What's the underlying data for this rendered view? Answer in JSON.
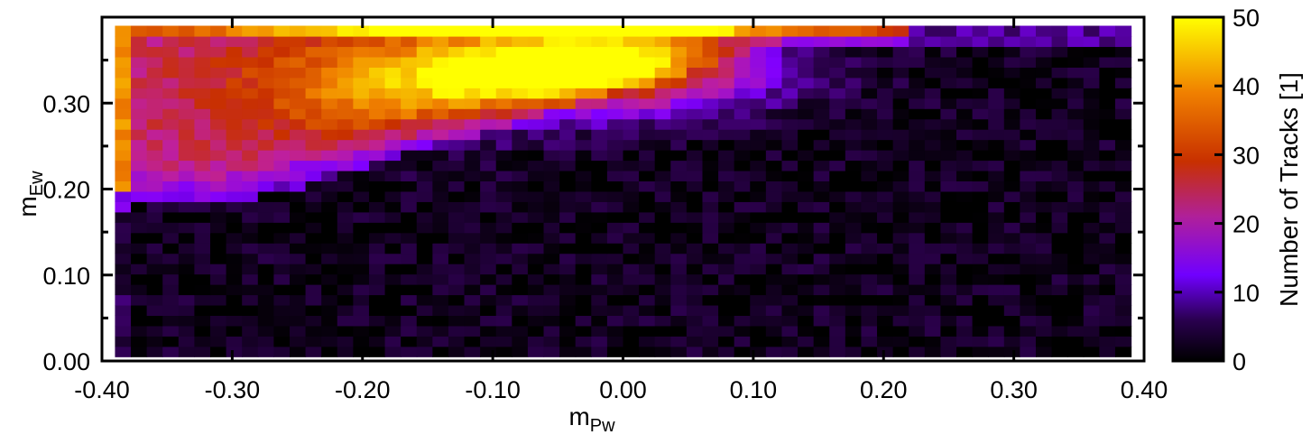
{
  "chart_data": {
    "type": "heatmap",
    "title": "",
    "xlabel": {
      "main": "m",
      "sub": "Pw"
    },
    "ylabel": {
      "main": "m",
      "sub": "Ew"
    },
    "xlim": [
      -0.4,
      0.4
    ],
    "ylim": [
      0.0,
      0.4
    ],
    "xticks": [
      "-0.40",
      "-0.30",
      "-0.20",
      "-0.10",
      "0.00",
      "0.10",
      "0.20",
      "0.30",
      "0.40"
    ],
    "yticks": [
      "0.00",
      "0.10",
      "0.20",
      "0.30"
    ],
    "colorbar": {
      "label": "Number of Tracks [1]",
      "range": [
        0,
        50
      ],
      "ticks": [
        "0",
        "10",
        "20",
        "30",
        "40",
        "50"
      ],
      "colormap": [
        "#000000",
        "#3a0066",
        "#8000ff",
        "#c0209a",
        "#c83000",
        "#f08000",
        "#ffff00"
      ]
    },
    "grid": {
      "x_bins": 64,
      "y_bins": 32,
      "x_range": [
        -0.39,
        0.39
      ],
      "y_range": [
        0.005,
        0.39
      ]
    },
    "description_features": [
      {
        "name": "bright_ridge",
        "x_center": -0.02,
        "y_center": 0.34,
        "peak_count": 50
      },
      {
        "name": "left_edge",
        "x": -0.39,
        "count": 40
      },
      {
        "name": "top_band",
        "y": 0.385,
        "count": 40
      },
      {
        "name": "background",
        "count": 2
      }
    ]
  }
}
